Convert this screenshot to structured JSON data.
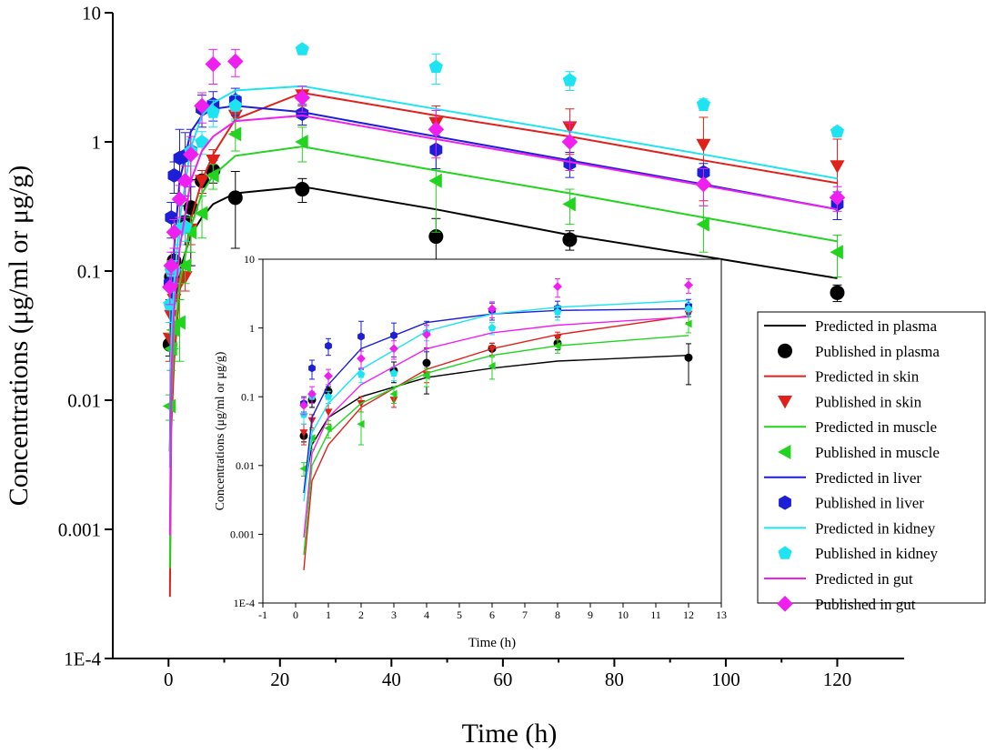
{
  "chart_data": [
    {
      "id": "main",
      "type": "scatter",
      "title": "",
      "xlabel": "Time (h)",
      "ylabel": "Concentrations (μg/ml or μg/g)",
      "xscale": "linear",
      "yscale": "log",
      "xlim": [
        -10,
        132
      ],
      "ylim": [
        0.0001,
        10
      ],
      "xticks": [
        0,
        20,
        40,
        60,
        80,
        100,
        120
      ],
      "xtick_labels": [
        "0",
        "20",
        "40",
        "60",
        "80",
        "100",
        "120"
      ],
      "yticks": [
        0.0001,
        0.001,
        0.01,
        0.1,
        1,
        10
      ],
      "ytick_labels": [
        "1E-4",
        "0.001",
        "0.01",
        "0.1",
        "1",
        "10"
      ],
      "legend_position": "right",
      "series": [
        {
          "tissue": "plasma",
          "color": "#000000",
          "marker": "circle",
          "predicted_label": "Predicted in plasma",
          "published_label": "Published in plasma",
          "predicted": {
            "x": [
              0.25,
              0.5,
              1,
              2,
              4,
              6,
              8,
              12,
              24,
              48,
              72,
              96,
              120
            ],
            "y": [
              0.004,
              0.02,
              0.05,
              0.1,
              0.19,
              0.26,
              0.33,
              0.4,
              0.45,
              0.3,
              0.19,
              0.13,
              0.088
            ]
          },
          "published": {
            "x": [
              0.25,
              0.5,
              1,
              3,
              4,
              6,
              8,
              12,
              24,
              48,
              72,
              96,
              120
            ],
            "y": [
              0.027,
              0.09,
              0.12,
              0.24,
              0.31,
              0.5,
              0.6,
              0.37,
              0.43,
              0.185,
              0.175,
              0.088,
              0.068
            ],
            "err": [
              0.005,
              0.02,
              0.02,
              0.08,
              0.2,
              0.1,
              0.12,
              0.22,
              0.09,
              0.07,
              0.03,
              0.02,
              0.01
            ]
          }
        },
        {
          "tissue": "skin",
          "color": "#e0201b",
          "marker": "triangle-down",
          "predicted_label": "Predicted in skin",
          "published_label": "Published in skin",
          "predicted": {
            "x": [
              0.25,
              0.5,
              1,
              2,
              4,
              6,
              8,
              12,
              24,
              48,
              72,
              96,
              120
            ],
            "y": [
              0.0003,
              0.006,
              0.02,
              0.07,
              0.25,
              0.5,
              0.8,
              1.5,
              2.4,
              1.6,
              1.1,
              0.72,
              0.48
            ]
          },
          "published": {
            "x": [
              0.25,
              0.5,
              1,
              2,
              3,
              4,
              6,
              8,
              12,
              24,
              48,
              72,
              96,
              120
            ],
            "y": [
              0.03,
              0.045,
              0.06,
              0.08,
              0.09,
              0.21,
              0.5,
              0.72,
              1.6,
              2.3,
              1.4,
              1.3,
              0.95,
              0.65
            ],
            "err": [
              0.01,
              0.01,
              0.02,
              0.02,
              0.02,
              0.05,
              0.1,
              0.15,
              0.4,
              0.4,
              0.5,
              0.5,
              0.6,
              0.4
            ]
          }
        },
        {
          "tissue": "muscle",
          "color": "#22d41e",
          "marker": "triangle-left",
          "predicted_label": "Predicted in muscle",
          "published_label": "Published in muscle",
          "predicted": {
            "x": [
              0.25,
              0.5,
              1,
              2,
              4,
              6,
              8,
              12,
              24,
              48,
              72,
              96,
              120
            ],
            "y": [
              0.0005,
              0.01,
              0.03,
              0.08,
              0.22,
              0.4,
              0.55,
              0.78,
              0.92,
              0.6,
              0.4,
              0.26,
              0.17
            ]
          },
          "published": {
            "x": [
              0.25,
              0.5,
              1,
              2,
              3,
              4,
              6,
              8,
              12,
              24,
              48,
              72,
              96,
              120
            ],
            "y": [
              0.009,
              0.025,
              0.035,
              0.04,
              0.11,
              0.2,
              0.28,
              0.55,
              1.15,
              1.0,
              0.5,
              0.33,
              0.23,
              0.14
            ],
            "err": [
              0.002,
              0.008,
              0.01,
              0.02,
              0.03,
              0.06,
              0.1,
              0.12,
              0.3,
              0.3,
              0.3,
              0.1,
              0.09,
              0.05
            ]
          }
        },
        {
          "tissue": "liver",
          "color": "#1c1fd6",
          "marker": "hexagon",
          "predicted_label": "Predicted in liver",
          "published_label": "Published in  liver",
          "predicted": {
            "x": [
              0.25,
              0.5,
              1,
              2,
              4,
              6,
              8,
              12,
              24,
              48,
              72,
              96,
              120
            ],
            "y": [
              0.004,
              0.05,
              0.15,
              0.5,
              1.2,
              1.6,
              1.8,
              1.9,
              1.7,
              1.1,
              0.72,
              0.47,
              0.3
            ]
          },
          "published": {
            "x": [
              0.25,
              0.5,
              1,
              2,
              3,
              4,
              6,
              8,
              12,
              24,
              48,
              72,
              96,
              120
            ],
            "y": [
              0.08,
              0.26,
              0.55,
              0.75,
              0.78,
              0.85,
              1.8,
              1.95,
              2.1,
              1.65,
              0.87,
              0.68,
              0.58,
              0.33
            ],
            "err": [
              0.02,
              0.08,
              0.15,
              0.5,
              0.4,
              0.4,
              0.5,
              0.5,
              0.5,
              0.3,
              0.25,
              0.15,
              0.1,
              0.08
            ]
          }
        },
        {
          "tissue": "kidney",
          "color": "#1ee4f2",
          "marker": "pentagon",
          "predicted_label": "Predicted in kidney",
          "published_label": "Published in  kidney",
          "predicted": {
            "x": [
              0.25,
              0.5,
              1,
              2,
              4,
              6,
              8,
              12,
              24,
              48,
              72,
              96,
              120
            ],
            "y": [
              0.003,
              0.03,
              0.08,
              0.25,
              0.9,
              1.6,
              2.0,
              2.5,
              2.7,
              1.8,
              1.2,
              0.8,
              0.52
            ]
          },
          "published": {
            "x": [
              0.25,
              0.5,
              1,
              2,
              3,
              4,
              6,
              8,
              12,
              24,
              48,
              72,
              96,
              120
            ],
            "y": [
              0.055,
              0.1,
              0.1,
              0.21,
              0.22,
              0.85,
              1.0,
              1.7,
              1.9,
              5.2,
              3.8,
              3.0,
              1.95,
              1.2
            ],
            "err": [
              0.015,
              0.02,
              0.02,
              0.05,
              0.05,
              0.2,
              0.2,
              0.4,
              0.4,
              0.4,
              1.0,
              0.5,
              0.2,
              0.1
            ]
          }
        },
        {
          "tissue": "gut",
          "color": "#ef1ff0",
          "marker": "diamond",
          "predicted_label": "Predicted in gut",
          "published_label": "Published in  gut",
          "predicted": {
            "x": [
              0.25,
              0.5,
              1,
              2,
              4,
              6,
              8,
              12,
              24,
              48,
              72,
              96,
              120
            ],
            "y": [
              0.0009,
              0.015,
              0.05,
              0.15,
              0.5,
              0.85,
              1.1,
              1.45,
              1.6,
              1.05,
              0.7,
              0.46,
              0.3
            ]
          },
          "published": {
            "x": [
              0.25,
              0.5,
              1,
              2,
              3,
              4,
              6,
              8,
              12,
              24,
              48,
              72,
              96,
              120
            ],
            "y": [
              0.075,
              0.11,
              0.2,
              0.36,
              0.5,
              0.8,
              1.9,
              4.0,
              4.2,
              2.2,
              1.25,
              1.0,
              0.47,
              0.37
            ],
            "err": [
              0.02,
              0.03,
              0.05,
              0.1,
              0.15,
              0.3,
              0.5,
              1.2,
              1.0,
              0.5,
              0.5,
              0.4,
              0.15,
              0.08
            ]
          }
        }
      ]
    },
    {
      "id": "inset",
      "type": "scatter",
      "title": "",
      "xlabel": "Time (h)",
      "ylabel": "Concentrations (μg/ml or μg/g)",
      "xscale": "linear",
      "yscale": "log",
      "xlim": [
        -1,
        13
      ],
      "ylim": [
        0.0001,
        10
      ],
      "xticks": [
        -1,
        0,
        1,
        2,
        3,
        4,
        5,
        6,
        7,
        8,
        9,
        10,
        11,
        12,
        13
      ],
      "xtick_labels": [
        "-1",
        "0",
        "1",
        "2",
        "3",
        "4",
        "5",
        "6",
        "7",
        "8",
        "9",
        "10",
        "11",
        "12",
        "13"
      ],
      "yticks": [
        0.0001,
        0.001,
        0.01,
        0.1,
        1,
        10
      ],
      "ytick_labels": [
        "1E-4",
        "0.001",
        "0.01",
        "0.1",
        "1",
        "10"
      ],
      "max_time": 12,
      "note": "zoomed view of first 12 h of the same series"
    }
  ]
}
